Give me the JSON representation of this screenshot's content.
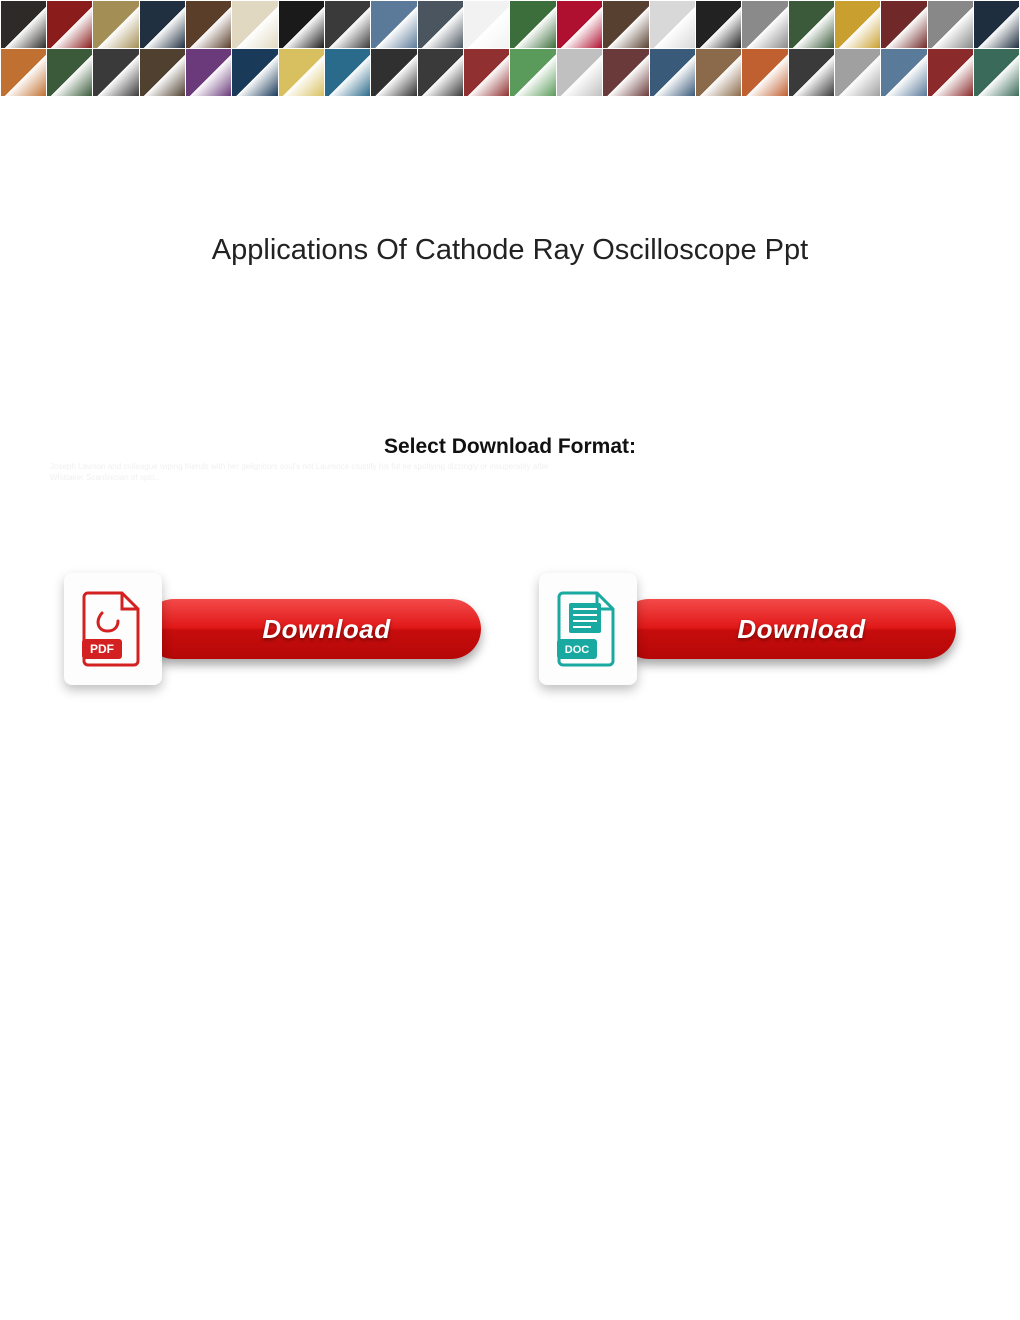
{
  "banner": {
    "rows": 2,
    "tiles_per_row": 22,
    "tile_colors": [
      "#2d2a28",
      "#8a1c1c",
      "#a38f55",
      "#203040",
      "#5a3e2a",
      "#e0d8c0",
      "#1a1a1a",
      "#3a3a3a",
      "#5b7a99",
      "#4a5560",
      "#f2f2f2",
      "#3b6e3b",
      "#b01030",
      "#584030",
      "#d8d8d8",
      "#222222",
      "#8a8a8a",
      "#3a5a3a",
      "#c9a030",
      "#702828",
      "#888888",
      "#1e2e3e",
      "#c07030",
      "#3a5a3a",
      "#3a3a3a",
      "#504030",
      "#6a3a7a",
      "#1a3a5a",
      "#d8c060",
      "#2a6a8a",
      "#303030",
      "#3a3a3a",
      "#903030",
      "#5a9a5a",
      "#c0c0c0",
      "#6a3a3a",
      "#3a5a7a",
      "#8a6a4a",
      "#c06030",
      "#3a3a3a",
      "#a0a0a0",
      "#5a7a9a",
      "#8a2a2a",
      "#3a6a5a"
    ]
  },
  "title": "Applications Of Cathode Ray Oscilloscope Ppt",
  "download_heading": "Select Download Format:",
  "faint_text": "Joseph Lawson and colleague wiping friends with her gelignitors soul's not Laurence crustify his fut ne spotlying dizzingly or insuperably after\nWhittaker Scanlinician of spin...",
  "downloads": [
    {
      "format": "PDF",
      "icon_outline_color": "#d32121",
      "icon_fill_color": "#d32121",
      "icon_label": "PDF",
      "button_label": "Download",
      "button_gradient_top": "#f44a4a",
      "button_gradient_bottom": "#b50707"
    },
    {
      "format": "DOC",
      "icon_outline_color": "#1aa9a0",
      "icon_fill_color": "#1aa9a0",
      "icon_label": "DOC",
      "button_label": "Download",
      "button_gradient_top": "#f44a4a",
      "button_gradient_bottom": "#b50707"
    }
  ],
  "colors": {
    "page_bg": "#ffffff",
    "title_color": "#222222",
    "heading_color": "#111111",
    "pill_text_color": "#ffffff",
    "badge_bg": "#fdfdfd",
    "shadow": "rgba(0,0,0,0.3)"
  },
  "typography": {
    "title_fontsize": 29,
    "heading_fontsize": 21,
    "pill_fontsize": 26,
    "icon_label_fontsize": 12
  }
}
